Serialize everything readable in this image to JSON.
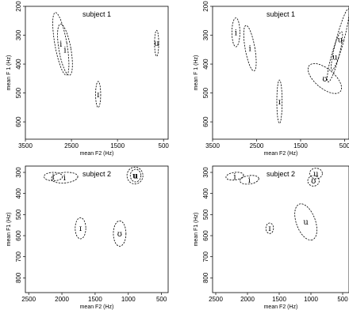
{
  "chart_data": [
    {
      "type": "scatter",
      "title": "subject 1",
      "xlabel": "mean F2 (Hz)",
      "ylabel": "mean F 1 (Hz)",
      "xlim": [
        3500,
        400
      ],
      "ylim": [
        200,
        660
      ],
      "xticks": [
        3500,
        2500,
        1500,
        500
      ],
      "yticks": [
        200,
        300,
        400,
        500,
        600
      ],
      "ytick_labels": [
        "200",
        "300",
        "400",
        "500",
        "600"
      ],
      "ellipses": [
        {
          "label": "i",
          "f2": 2730,
          "f1": 330,
          "semi_f2": 130,
          "semi_f1": 110,
          "angle_deg": -10
        },
        {
          "label": "i",
          "f2": 2640,
          "f1": 350,
          "semi_f2": 130,
          "semi_f1": 90,
          "angle_deg": -10
        },
        {
          "label": "u",
          "f2": 650,
          "f1": 328,
          "semi_f2": 45,
          "semi_f1": 45,
          "angle_deg": 0
        },
        {
          "label": "ɪ",
          "f2": 1920,
          "f1": 505,
          "semi_f2": 55,
          "semi_f1": 45,
          "angle_deg": 0
        }
      ]
    },
    {
      "type": "scatter",
      "title": "subject 1",
      "xlabel": "mean F2 (Hz)",
      "ylabel": "mean F 1 (Hz)",
      "xlim": [
        3500,
        400
      ],
      "ylim": [
        200,
        660
      ],
      "xticks": [
        3500,
        2500,
        1500,
        500
      ],
      "yticks": [
        200,
        300,
        400,
        500,
        600
      ],
      "ytick_labels": [
        "200",
        "300",
        "400",
        "500",
        "600"
      ],
      "ellipses": [
        {
          "label": "i",
          "f2": 2970,
          "f1": 290,
          "semi_f2": 90,
          "semi_f1": 50,
          "angle_deg": 0
        },
        {
          "label": "i",
          "f2": 2650,
          "f1": 345,
          "semi_f2": 110,
          "semi_f1": 80,
          "angle_deg": -10
        },
        {
          "label": "ɪ",
          "f2": 1980,
          "f1": 530,
          "semi_f2": 60,
          "semi_f1": 75,
          "angle_deg": 0
        },
        {
          "label": "u",
          "f2": 600,
          "f1": 315,
          "semi_f2": 85,
          "semi_f1": 110,
          "angle_deg": 15
        },
        {
          "label": "u",
          "f2": 720,
          "f1": 375,
          "semi_f2": 85,
          "semi_f1": 90,
          "angle_deg": 15
        },
        {
          "label": "ʊ",
          "f2": 950,
          "f1": 450,
          "semi_f2": 220,
          "semi_f1": 70,
          "angle_deg": -50
        }
      ]
    },
    {
      "type": "scatter",
      "title": "subject 2",
      "xlabel": "mean F2 (Hz)",
      "ylabel": "mean F1 (Hz)",
      "xlim": [
        2550,
        400
      ],
      "ylim": [
        270,
        870
      ],
      "xticks": [
        2500,
        2000,
        1500,
        1000,
        500
      ],
      "yticks": [
        300,
        400,
        500,
        600,
        700,
        800
      ],
      "ytick_labels": [
        "300",
        "400",
        "500",
        "600",
        "700",
        "800"
      ],
      "ellipses": [
        {
          "label": "i",
          "f2": 2130,
          "f1": 320,
          "semi_f2": 140,
          "semi_f1": 20,
          "angle_deg": 0
        },
        {
          "label": "i",
          "f2": 1960,
          "f1": 325,
          "semi_f2": 200,
          "semi_f1": 25,
          "angle_deg": -5
        },
        {
          "label": "u",
          "f2": 900,
          "f1": 315,
          "semi_f2": 120,
          "semi_f1": 40,
          "angle_deg": 0
        },
        {
          "label": "u",
          "f2": 890,
          "f1": 315,
          "semi_f2": 80,
          "semi_f1": 30,
          "angle_deg": 0
        },
        {
          "label": "ɪ",
          "f2": 1720,
          "f1": 565,
          "semi_f2": 80,
          "semi_f1": 50,
          "angle_deg": 0
        },
        {
          "label": "ʊ",
          "f2": 1130,
          "f1": 590,
          "semi_f2": 95,
          "semi_f1": 60,
          "angle_deg": 0
        }
      ]
    },
    {
      "type": "scatter",
      "title": "subject 2",
      "xlabel": "mean F2 (Hz)",
      "ylabel": "mean F1 (Hz)",
      "xlim": [
        2550,
        400
      ],
      "ylim": [
        270,
        870
      ],
      "xticks": [
        2500,
        2000,
        1500,
        1000,
        500
      ],
      "yticks": [
        300,
        400,
        500,
        600,
        700,
        800
      ],
      "ytick_labels": [
        "300",
        "400",
        "500",
        "600",
        "700",
        "800"
      ],
      "ellipses": [
        {
          "label": "i",
          "f2": 2200,
          "f1": 318,
          "semi_f2": 140,
          "semi_f1": 18,
          "angle_deg": -8
        },
        {
          "label": "i",
          "f2": 1970,
          "f1": 335,
          "semi_f2": 150,
          "semi_f1": 20,
          "angle_deg": -8
        },
        {
          "label": "u",
          "f2": 920,
          "f1": 305,
          "semi_f2": 100,
          "semi_f1": 25,
          "angle_deg": 0
        },
        {
          "label": "ʊ",
          "f2": 960,
          "f1": 340,
          "semi_f2": 90,
          "semi_f1": 25,
          "angle_deg": 0
        },
        {
          "label": "ɪ",
          "f2": 1650,
          "f1": 565,
          "semi_f2": 60,
          "semi_f1": 25,
          "angle_deg": 0
        },
        {
          "label": "u",
          "f2": 1080,
          "f1": 535,
          "semi_f2": 300,
          "semi_f1": 45,
          "angle_deg": 70
        }
      ]
    }
  ]
}
